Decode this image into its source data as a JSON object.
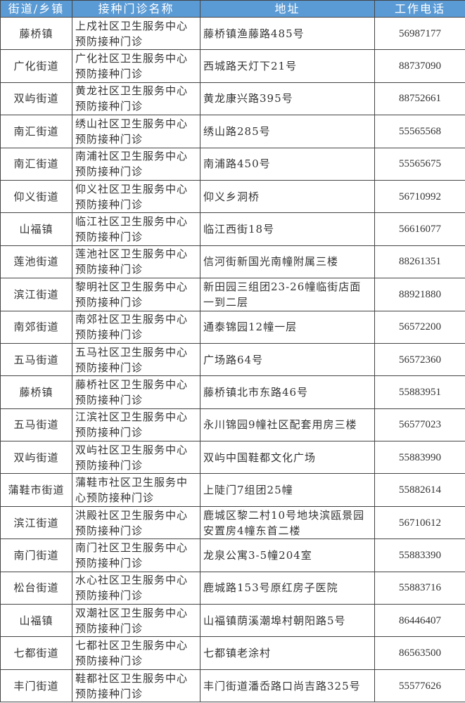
{
  "header": {
    "district": "街道/乡镇",
    "clinic": "接种门诊名称",
    "address": "地址",
    "phone": "工作电话"
  },
  "header_color": "#5b9bd5",
  "rows": [
    {
      "district": "藤桥镇",
      "clinic": "上戍社区卫生服务中心预防接种门诊",
      "address": "藤桥镇渔藤路485号",
      "phone": "56987177"
    },
    {
      "district": "广化街道",
      "clinic": "广化社区卫生服务中心预防接种门诊",
      "address": "西城路天灯下21号",
      "phone": "88737090"
    },
    {
      "district": "双屿街道",
      "clinic": "黄龙社区卫生服务中心预防接种门诊",
      "address": "黄龙康兴路395号",
      "phone": "88752661"
    },
    {
      "district": "南汇街道",
      "clinic": "绣山社区卫生服务中心预防接种门诊",
      "address": "绣山路285号",
      "phone": "55565568"
    },
    {
      "district": "南汇街道",
      "clinic": "南浦社区卫生服务中心预防接种门诊",
      "address": "南浦路450号",
      "phone": "55565675"
    },
    {
      "district": "仰义街道",
      "clinic": "仰义社区卫生服务中心预防接种门诊",
      "address": "仰义乡洞桥",
      "phone": "56710992"
    },
    {
      "district": "山福镇",
      "clinic": "临江社区卫生服务中心预防接种门诊",
      "address": "临江西街18号",
      "phone": "56616077"
    },
    {
      "district": "莲池街道",
      "clinic": "莲池社区卫生服务中心预防接种门诊",
      "address": "信河街新国光南幢附属三楼",
      "phone": "88261351"
    },
    {
      "district": "滨江街道",
      "clinic": "黎明社区卫生服务中心预防接种门诊",
      "address": "新田园三组团23-26幢临街店面一到二层",
      "phone": "88921880"
    },
    {
      "district": "南郊街道",
      "clinic": "南郊社区卫生服务中心预防接种门诊",
      "address": "通泰锦园12幢一层",
      "phone": "56572200"
    },
    {
      "district": "五马街道",
      "clinic": "五马社区卫生服务中心预防接种门诊",
      "address": "广场路64号",
      "phone": "56572360"
    },
    {
      "district": "藤桥镇",
      "clinic": "藤桥社区卫生服务中心预防接种门诊",
      "address": "藤桥镇北市东路46号",
      "phone": "55883951"
    },
    {
      "district": "五马街道",
      "clinic": "江滨社区卫生服务中心预防接种门诊",
      "address": "永川锦园9幢社区配套用房三楼",
      "phone": "56577023"
    },
    {
      "district": "双屿街道",
      "clinic": "双屿社区卫生服务中心预防接种门诊",
      "address": "双屿中国鞋都文化广场",
      "phone": "55883990"
    },
    {
      "district": "蒲鞋市街道",
      "clinic": "蒲鞋市社区卫生服务中心预防接种门诊",
      "address": "上陡门7组团25幢",
      "phone": "55882614"
    },
    {
      "district": "滨江街道",
      "clinic": "洪殿社区卫生服务中心预防接种门诊",
      "address": "鹿城区黎二村10号地块滨瓯景园安置房4幢东首二楼",
      "phone": "56710612"
    },
    {
      "district": "南门街道",
      "clinic": "南门社区卫生服务中心预防接种门诊",
      "address": "龙泉公寓3-5幢204室",
      "phone": "55883390"
    },
    {
      "district": "松台街道",
      "clinic": "水心社区卫生服务中心预防接种门诊",
      "address": "鹿城路153号原红房子医院",
      "phone": "55883716"
    },
    {
      "district": "山福镇",
      "clinic": "双潮社区卫生服务中心预防接种门诊",
      "address": "山福镇荫溪潮埠村朝阳路5号",
      "phone": "86446407"
    },
    {
      "district": "七都街道",
      "clinic": "七都社区卫生服务中心预防接种门诊",
      "address": "七都镇老涂村",
      "phone": "86563500"
    },
    {
      "district": "丰门街道",
      "clinic": "鞋都社区卫生服务中心预防接种门诊",
      "address": "丰门街道潘岙路口尚吉路325号",
      "phone": "55577626"
    }
  ]
}
